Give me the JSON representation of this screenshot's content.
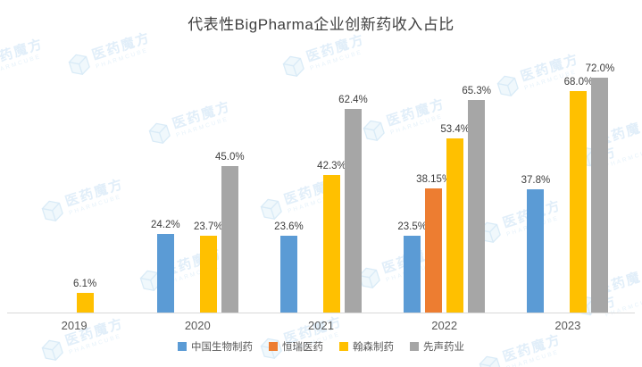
{
  "watermark": {
    "cn": "医药魔方",
    "en": "PHARMCUBE"
  },
  "chart_data": {
    "type": "bar",
    "title": "代表性BigPharma企业创新药收入占比",
    "categories": [
      "2019",
      "2020",
      "2021",
      "2022",
      "2023"
    ],
    "series": [
      {
        "id": "sino-biopharm",
        "name": "中国生物制药",
        "color": "#5B9BD5",
        "values": [
          null,
          24.2,
          23.6,
          23.5,
          37.8
        ],
        "labels": [
          "",
          "24.2%",
          "23.6%",
          "23.5%",
          "37.8%"
        ]
      },
      {
        "id": "hengrui-medicine",
        "name": "恒瑞医药",
        "color": "#ED7D31",
        "values": [
          null,
          null,
          null,
          38.15,
          null
        ],
        "labels": [
          "",
          "",
          "",
          "38.15%",
          ""
        ]
      },
      {
        "id": "hansoh-pharma",
        "name": "翰森制药",
        "color": "#FFC000",
        "values": [
          6.1,
          23.7,
          42.3,
          53.4,
          68.0
        ],
        "labels": [
          "6.1%",
          "23.7%",
          "42.3%",
          "53.4%",
          "68.0%"
        ]
      },
      {
        "id": "simcere-pharma",
        "name": "先声药业",
        "color": "#A6A6A6",
        "values": [
          null,
          45.0,
          62.4,
          65.3,
          72.0
        ],
        "labels": [
          "",
          "45.0%",
          "62.4%",
          "65.3%",
          "72.0%"
        ]
      }
    ],
    "xlabel": "",
    "ylabel": "",
    "ylim": [
      0,
      80
    ],
    "grid": false,
    "legend_position": "bottom",
    "axis_color": "#d9d9d9"
  }
}
